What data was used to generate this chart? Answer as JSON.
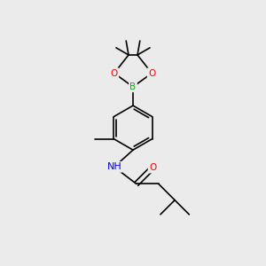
{
  "bg_color": "#ebebeb",
  "bond_color": "#000000",
  "bond_width": 1.2,
  "atom_colors": {
    "B": "#00bb00",
    "O": "#ff0000",
    "N": "#0000ee",
    "C": "#000000",
    "H": "#000000"
  },
  "font_size_atom": 7.5,
  "font_size_label": 6.5
}
